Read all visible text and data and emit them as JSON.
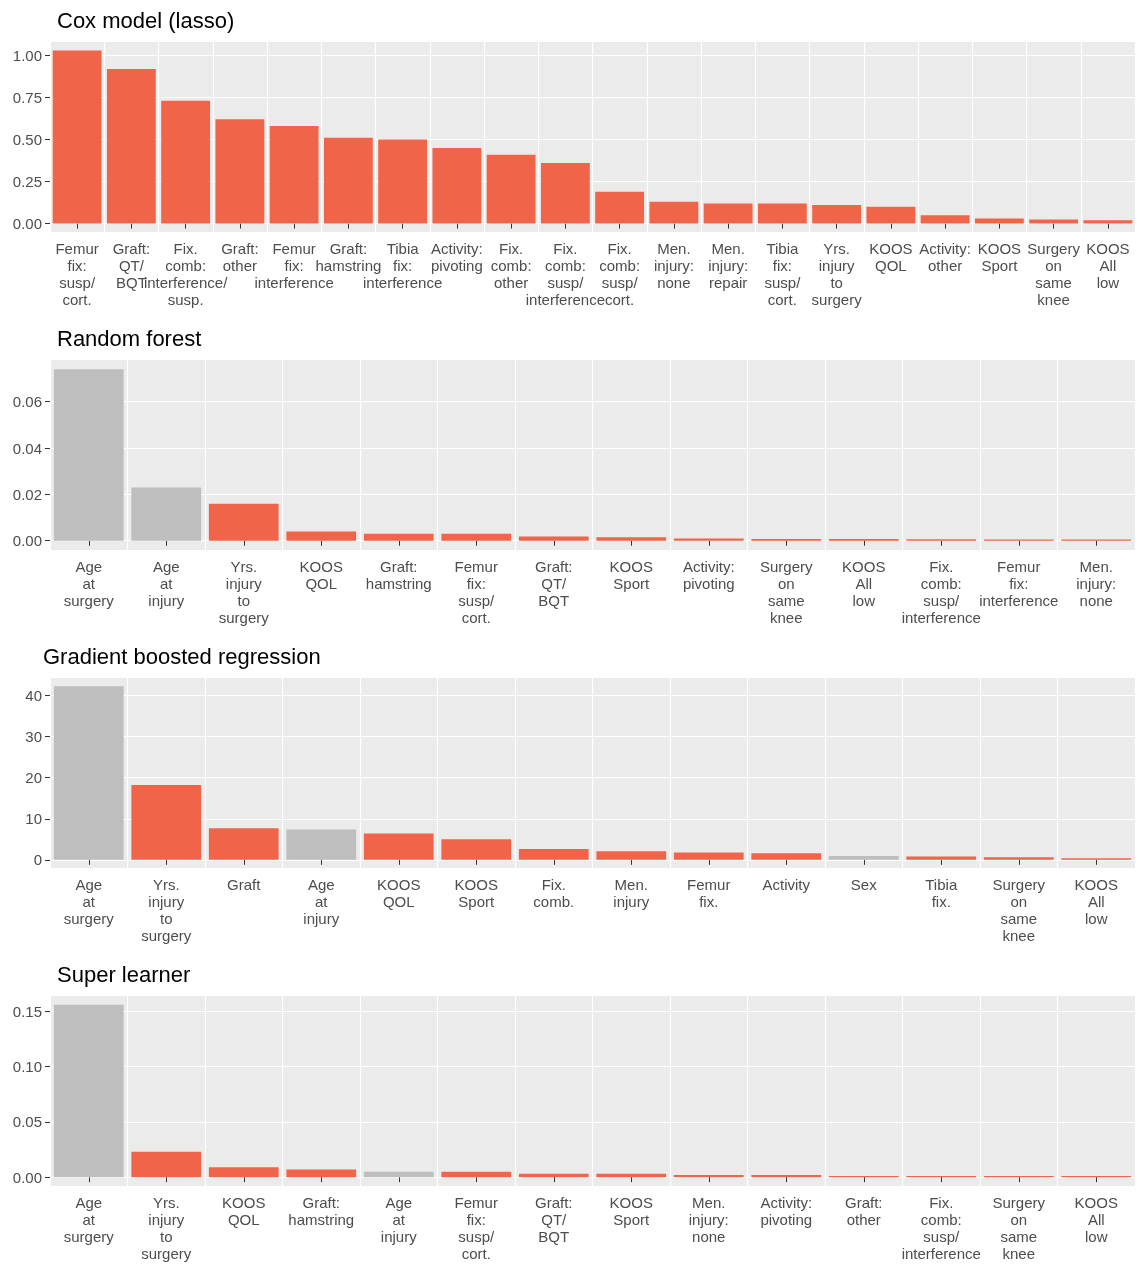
{
  "chart_data": [
    {
      "type": "bar",
      "title": "Cox model (lasso)",
      "categories": [
        "Femur fix: susp/ cort.",
        "Graft: QT/ BQT",
        "Fix. comb: interference/ susp.",
        "Graft: other",
        "Femur fix: interference",
        "Graft: hamstring",
        "Tibia fix: interference",
        "Activity: pivoting",
        "Fix. comb: other",
        "Fix. comb: susp/ interference",
        "Fix. comb: susp/ cort.",
        "Men. injury: none",
        "Men. injury: repair",
        "Tibia fix: susp/ cort.",
        "Yrs. injury to surgery",
        "KOOS QOL",
        "Activity: other",
        "KOOS Sport",
        "Surgery on same knee",
        "KOOS All low"
      ],
      "values": [
        1.03,
        0.92,
        0.73,
        0.62,
        0.58,
        0.51,
        0.5,
        0.45,
        0.41,
        0.36,
        0.19,
        0.13,
        0.12,
        0.12,
        0.11,
        0.1,
        0.05,
        0.03,
        0.025,
        0.02
      ],
      "colors": [
        "#f0644a",
        "#f0644a",
        "#f0644a",
        "#f0644a",
        "#f0644a",
        "#f0644a",
        "#f0644a",
        "#f0644a",
        "#f0644a",
        "#f0644a",
        "#f0644a",
        "#f0644a",
        "#f0644a",
        "#f0644a",
        "#f0644a",
        "#f0644a",
        "#f0644a",
        "#f0644a",
        "#f0644a",
        "#f0644a"
      ],
      "ylim": [
        -0.05,
        1.08
      ],
      "yticks": [
        {
          "value": 0,
          "label": "0.00"
        },
        {
          "value": 0.25,
          "label": "0.25"
        },
        {
          "value": 0.5,
          "label": "0.50"
        },
        {
          "value": 0.75,
          "label": "0.75"
        },
        {
          "value": 1,
          "label": "1.00"
        }
      ],
      "grid": true
    },
    {
      "type": "bar",
      "title": "Random forest",
      "categories": [
        "Age at surgery",
        "Age at injury",
        "Yrs. injury to surgery",
        "KOOS QOL",
        "Graft: hamstring",
        "Femur fix: susp/ cort.",
        "Graft: QT/ BQT",
        "KOOS Sport",
        "Activity: pivoting",
        "Surgery on same knee",
        "KOOS All low",
        "Fix. comb: susp/ interference",
        "Femur fix: interference",
        "Men. injury: none"
      ],
      "values": [
        0.074,
        0.023,
        0.016,
        0.004,
        0.003,
        0.003,
        0.0018,
        0.0015,
        0.001,
        0.0008,
        0.0008,
        0.0006,
        0.0005,
        0.0005
      ],
      "colors": [
        "#bebebe",
        "#bebebe",
        "#f0644a",
        "#f0644a",
        "#f0644a",
        "#f0644a",
        "#f0644a",
        "#f0644a",
        "#f0644a",
        "#f0644a",
        "#f0644a",
        "#f0644a",
        "#f0644a",
        "#f0644a"
      ],
      "ylim": [
        -0.004,
        0.078
      ],
      "yticks": [
        {
          "value": 0,
          "label": "0.00"
        },
        {
          "value": 0.02,
          "label": "0.02"
        },
        {
          "value": 0.04,
          "label": "0.04"
        },
        {
          "value": 0.06,
          "label": "0.06"
        }
      ],
      "grid": true
    },
    {
      "type": "bar",
      "title": "Gradient boosted regression",
      "categories": [
        "Age at surgery",
        "Yrs. injury to surgery",
        "Graft",
        "Age at injury",
        "KOOS QOL",
        "KOOS Sport",
        "Fix. comb.",
        "Men. injury",
        "Femur fix.",
        "Activity",
        "Sex",
        "Tibia fix.",
        "Surgery on same knee",
        "KOOS All low"
      ],
      "values": [
        42.3,
        18.2,
        7.7,
        7.4,
        6.4,
        5.0,
        2.6,
        2.1,
        1.8,
        1.6,
        0.9,
        0.8,
        0.6,
        0.4
      ],
      "colors": [
        "#bebebe",
        "#f0644a",
        "#f0644a",
        "#bebebe",
        "#f0644a",
        "#f0644a",
        "#f0644a",
        "#f0644a",
        "#f0644a",
        "#f0644a",
        "#bebebe",
        "#f0644a",
        "#f0644a",
        "#f0644a"
      ],
      "ylim": [
        -2,
        44.3
      ],
      "yticks": [
        0,
        10,
        20,
        30,
        40
      ],
      "grid": true
    },
    {
      "type": "bar",
      "title": "Super learner",
      "categories": [
        "Age at surgery",
        "Yrs. injury to surgery",
        "KOOS QOL",
        "Graft: hamstring",
        "Age at injury",
        "Femur fix: susp/ cort.",
        "Graft: QT/ BQT",
        "KOOS Sport",
        "Men. injury: none",
        "Activity: pivoting",
        "Graft: other",
        "Fix. comb: susp/ interference",
        "Surgery on same knee",
        "KOOS All low"
      ],
      "values": [
        0.156,
        0.023,
        0.009,
        0.007,
        0.005,
        0.005,
        0.003,
        0.003,
        0.002,
        0.002,
        0.001,
        0.001,
        0.001,
        0.001
      ],
      "colors": [
        "#bebebe",
        "#f0644a",
        "#f0644a",
        "#f0644a",
        "#bebebe",
        "#f0644a",
        "#f0644a",
        "#f0644a",
        "#f0644a",
        "#f0644a",
        "#f0644a",
        "#f0644a",
        "#f0644a",
        "#f0644a"
      ],
      "ylim": [
        -0.008,
        0.164
      ],
      "yticks": [
        {
          "value": 0,
          "label": "0.00"
        },
        {
          "value": 0.05,
          "label": "0.05"
        },
        {
          "value": 0.1,
          "label": "0.10"
        },
        {
          "value": 0.15,
          "label": "0.15"
        }
      ],
      "grid": true
    }
  ]
}
